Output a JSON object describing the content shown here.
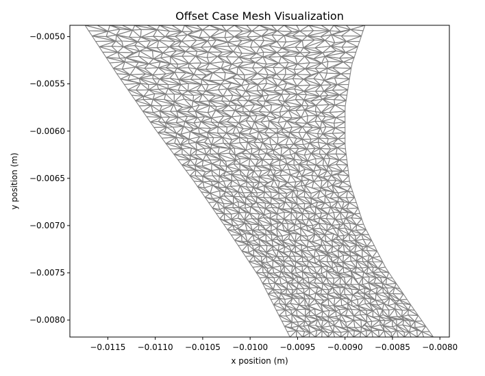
{
  "chart_data": {
    "type": "mesh",
    "title": "Offset Case Mesh Visualization",
    "xlabel": "x position (m)",
    "ylabel": "y position (m)",
    "xlim": [
      -0.0119,
      -0.0079
    ],
    "ylim": [
      -0.00818,
      -0.00488
    ],
    "x_ticks": [
      -0.0115,
      -0.011,
      -0.0105,
      -0.01,
      -0.0095,
      -0.009,
      -0.0085,
      -0.008
    ],
    "x_tick_labels": [
      "−0.0115",
      "−0.0110",
      "−0.0105",
      "−0.0100",
      "−0.0095",
      "−0.0090",
      "−0.0085",
      "−0.0080"
    ],
    "y_ticks": [
      -0.005,
      -0.0055,
      -0.006,
      -0.0065,
      -0.007,
      -0.0075,
      -0.008
    ],
    "y_tick_labels": [
      "−0.0050",
      "−0.0055",
      "−0.0060",
      "−0.0065",
      "−0.0070",
      "−0.0075",
      "−0.0080"
    ],
    "grid": false,
    "mesh_color": "#808080",
    "element_type": "triangle",
    "region_outline": {
      "left_boundary": [
        [
          -0.01174,
          -0.00488
        ],
        [
          -0.0114,
          -0.0054
        ],
        [
          -0.011,
          -0.00598
        ],
        [
          -0.0106,
          -0.00652
        ],
        [
          -0.0102,
          -0.0071
        ],
        [
          -0.0099,
          -0.00755
        ],
        [
          -0.00958,
          -0.00818
        ]
      ],
      "right_boundary": [
        [
          -0.00879,
          -0.00488
        ],
        [
          -0.00893,
          -0.0053
        ],
        [
          -0.009,
          -0.00575
        ],
        [
          -0.009,
          -0.00615
        ],
        [
          -0.00895,
          -0.00655
        ],
        [
          -0.0088,
          -0.007
        ],
        [
          -0.00857,
          -0.00745
        ],
        [
          -0.0083,
          -0.00785
        ],
        [
          -0.00807,
          -0.00818
        ]
      ]
    }
  }
}
